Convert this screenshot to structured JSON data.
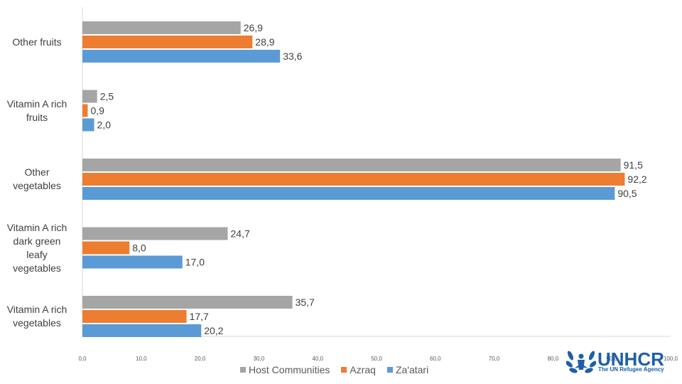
{
  "chart_data": {
    "type": "bar",
    "orientation": "horizontal",
    "categories": [
      "Other fruits",
      "Vitamin A rich fruits",
      "Other vegetables",
      "Vitamin A rich dark green leafy vegetables",
      "Vitamin A rich vegetables"
    ],
    "category_lines": [
      [
        "Other fruits"
      ],
      [
        "Vitamin A rich",
        "fruits"
      ],
      [
        "Other",
        "vegetables"
      ],
      [
        "Vitamin A rich",
        "dark green",
        "leafy",
        "vegetables"
      ],
      [
        "Vitamin A rich",
        "vegetables"
      ]
    ],
    "series": [
      {
        "name": "Host Communities",
        "color": "#a5a5a5",
        "values": [
          26.9,
          2.5,
          91.5,
          24.7,
          35.7
        ],
        "labels": [
          "26,9",
          "2,5",
          "91,5",
          "24,7",
          "35,7"
        ]
      },
      {
        "name": "Azraq",
        "color": "#ed7d31",
        "values": [
          28.9,
          0.9,
          92.2,
          8.0,
          17.7
        ],
        "labels": [
          "28,9",
          "0,9",
          "92,2",
          "8,0",
          "17,7"
        ]
      },
      {
        "name": "Za'atari",
        "color": "#5b9bd5",
        "values": [
          33.6,
          2.0,
          90.5,
          17.0,
          20.2
        ],
        "labels": [
          "33,6",
          "2,0",
          "90,5",
          "17,0",
          "20,2"
        ]
      }
    ],
    "xlim": [
      0,
      100
    ],
    "xticks": [
      "0,0",
      "10,0",
      "20,0",
      "30,0",
      "40,0",
      "50,0",
      "60,0",
      "70,0",
      "80,0",
      "90,0",
      "100,0"
    ],
    "grid": false,
    "legend_position": "bottom"
  },
  "logo": {
    "name": "UNHCR",
    "tagline": "The UN Refugee Agency",
    "color": "#1d5fa8"
  }
}
